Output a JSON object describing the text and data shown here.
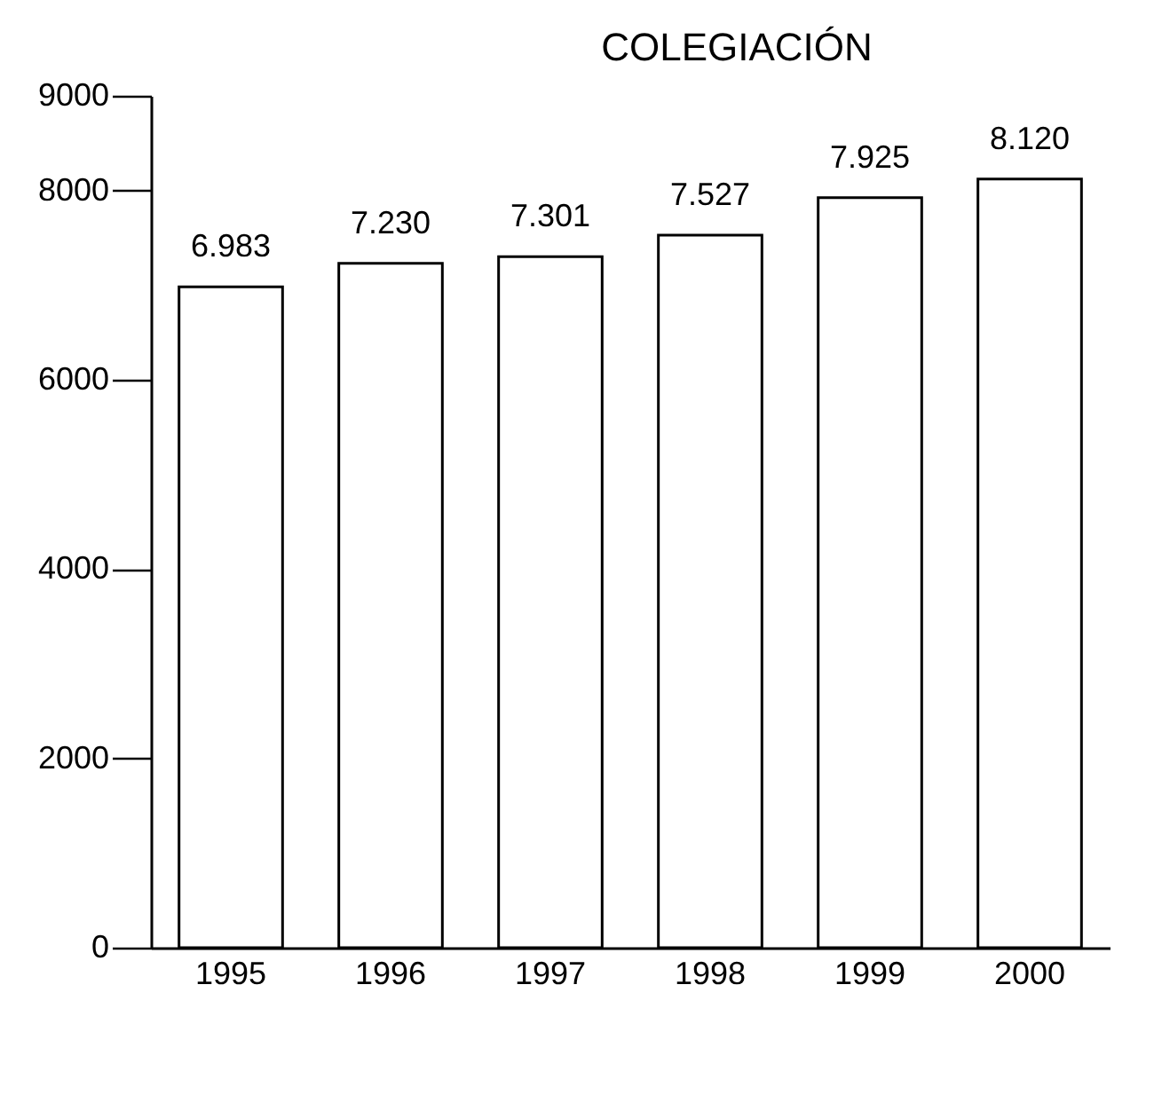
{
  "chart_data": {
    "type": "bar",
    "title": "COLEGIACIÓN",
    "categories": [
      "1995",
      "1996",
      "1997",
      "1998",
      "1999",
      "2000"
    ],
    "values": [
      6983,
      7230,
      7301,
      7527,
      7925,
      8120
    ],
    "value_labels": [
      "6.983",
      "7.230",
      "7.301",
      "7.527",
      "7.925",
      "8.120"
    ],
    "color": "#ffffff",
    "ylim": [
      0,
      9000
    ],
    "yticks": [
      0,
      2000,
      4000,
      6000,
      8000,
      9000
    ],
    "grid": false
  }
}
